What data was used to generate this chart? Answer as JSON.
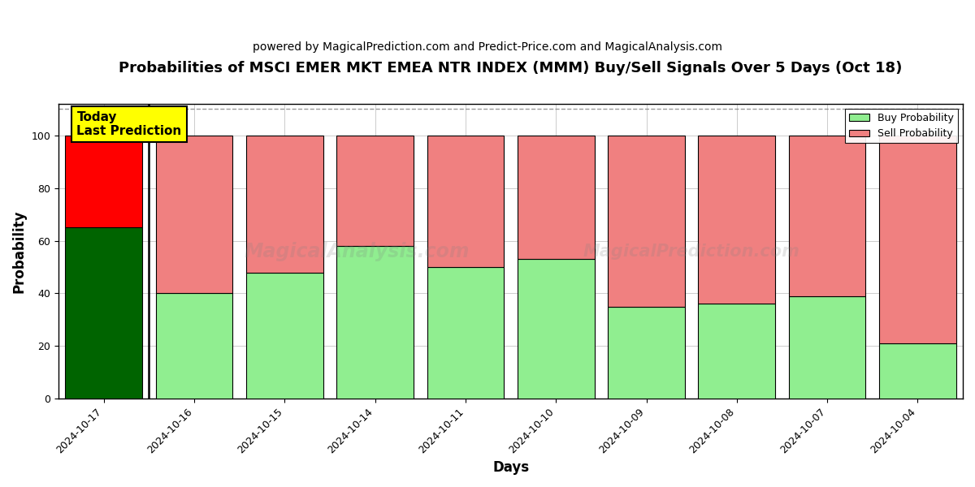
{
  "title": "Probabilities of MSCI EMER MKT EMEA NTR INDEX (MMM) Buy/Sell Signals Over 5 Days (Oct 18)",
  "subtitle": "powered by MagicalPrediction.com and Predict-Price.com and MagicalAnalysis.com",
  "xlabel": "Days",
  "ylabel": "Probability",
  "categories": [
    "2024-10-17",
    "2024-10-16",
    "2024-10-15",
    "2024-10-14",
    "2024-10-11",
    "2024-10-10",
    "2024-10-09",
    "2024-10-08",
    "2024-10-07",
    "2024-10-04"
  ],
  "buy_values": [
    65,
    40,
    48,
    58,
    50,
    53,
    35,
    36,
    39,
    21
  ],
  "sell_values": [
    35,
    60,
    52,
    42,
    50,
    47,
    65,
    64,
    61,
    79
  ],
  "today_buy_color": "#006400",
  "today_sell_color": "#FF0000",
  "future_buy_color": "#90EE90",
  "future_sell_color": "#F08080",
  "today_label_bg": "#FFFF00",
  "today_label_text": "Today\nLast Prediction",
  "legend_buy_label": "Buy Probability",
  "legend_sell_label": "Sell Probability",
  "ylim": [
    0,
    112
  ],
  "yticks": [
    0,
    20,
    40,
    60,
    80,
    100
  ],
  "dashed_line_y": 110,
  "watermark1": "MagicalAnalysis.com",
  "watermark2": "MagicalPrediction.com",
  "bg_color": "#FFFFFF",
  "grid_color": "#CCCCCC",
  "title_fontsize": 13,
  "subtitle_fontsize": 10,
  "axis_label_fontsize": 12,
  "tick_fontsize": 9,
  "bar_width": 0.85
}
